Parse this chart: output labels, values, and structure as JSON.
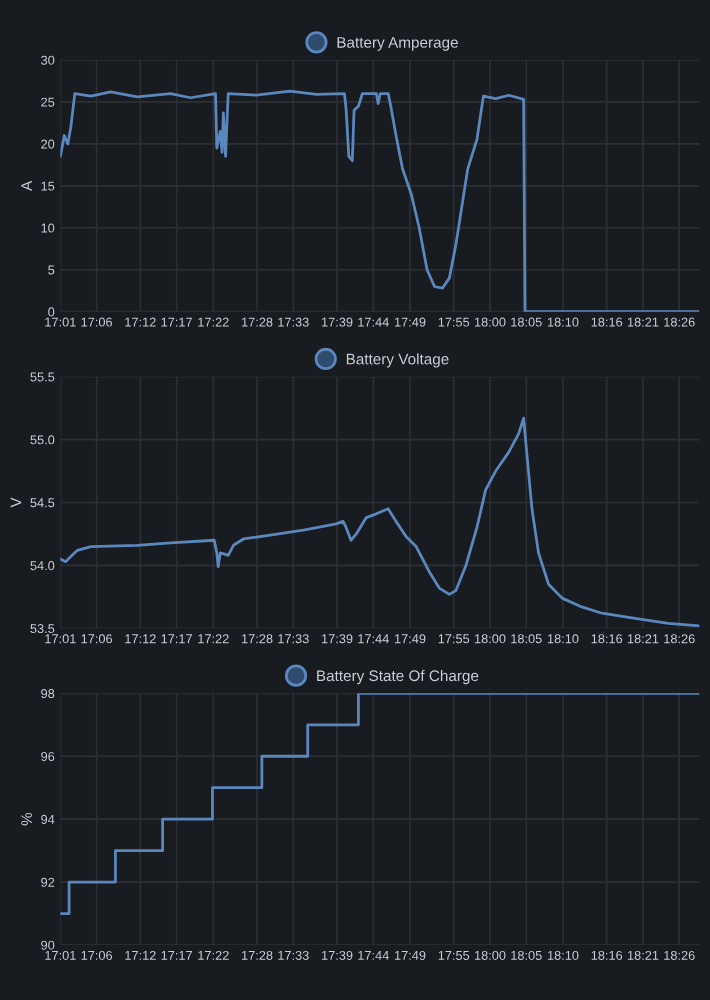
{
  "chart_data": [
    {
      "type": "line",
      "ylabel": "A",
      "legend": "top",
      "grid": true,
      "marker": "none",
      "line_style": "solid",
      "xlim": [
        17.017,
        18.479
      ],
      "ylim": [
        0,
        30
      ],
      "yticks": [
        0,
        5,
        10,
        15,
        20,
        25,
        30
      ],
      "xticks": [
        {
          "value": 17.017,
          "label": "17:01"
        },
        {
          "value": 17.1,
          "label": "17:06"
        },
        {
          "value": 17.2,
          "label": "17:12"
        },
        {
          "value": 17.283,
          "label": "17:17"
        },
        {
          "value": 17.367,
          "label": "17:22"
        },
        {
          "value": 17.467,
          "label": "17:28"
        },
        {
          "value": 17.55,
          "label": "17:33"
        },
        {
          "value": 17.65,
          "label": "17:39"
        },
        {
          "value": 17.733,
          "label": "17:44"
        },
        {
          "value": 17.817,
          "label": "17:49"
        },
        {
          "value": 17.917,
          "label": "17:55"
        },
        {
          "value": 18.0,
          "label": "18:00"
        },
        {
          "value": 18.083,
          "label": "18:05"
        },
        {
          "value": 18.167,
          "label": "18:10"
        },
        {
          "value": 18.267,
          "label": "18:16"
        },
        {
          "value": 18.35,
          "label": "18:21"
        },
        {
          "value": 18.433,
          "label": "18:26"
        }
      ],
      "series": [
        {
          "name": "Battery Amperage",
          "color": "#5a87bd",
          "x": [
            17.017,
            17.026,
            17.034,
            17.041,
            17.05,
            17.087,
            17.132,
            17.193,
            17.269,
            17.315,
            17.372,
            17.375,
            17.383,
            17.387,
            17.39,
            17.395,
            17.401,
            17.466,
            17.542,
            17.603,
            17.667,
            17.671,
            17.677,
            17.685,
            17.689,
            17.699,
            17.708,
            17.74,
            17.744,
            17.749,
            17.767,
            17.773,
            17.785,
            17.8,
            17.82,
            17.838,
            17.856,
            17.873,
            17.891,
            17.907,
            17.922,
            17.937,
            17.949,
            17.97,
            17.985,
            18.013,
            18.043,
            18.077,
            18.08,
            18.479
          ],
          "values": [
            18.5,
            21,
            20,
            22,
            26,
            25.7,
            26.2,
            25.6,
            26,
            25.5,
            26,
            19.5,
            21.5,
            19,
            23.7,
            18.5,
            26,
            25.8,
            26.3,
            25.9,
            26,
            24,
            18.5,
            18,
            24,
            24.5,
            26,
            26,
            24.8,
            26,
            26,
            24.5,
            21,
            17,
            14,
            10,
            5,
            3,
            2.8,
            4,
            8,
            13,
            17,
            20.5,
            25.7,
            25.4,
            25.8,
            25.3,
            0,
            0
          ]
        }
      ]
    },
    {
      "type": "line",
      "ylabel": "V",
      "legend": "top",
      "grid": true,
      "marker": "none",
      "line_style": "solid",
      "xlim": [
        17.017,
        18.479
      ],
      "ylim": [
        53.5,
        55.5
      ],
      "yticks": [
        {
          "value": 53.5,
          "label": "53.5"
        },
        {
          "value": 54,
          "label": "54.0"
        },
        {
          "value": 54.5,
          "label": "54.5"
        },
        {
          "value": 55,
          "label": "55.0"
        },
        {
          "value": 55.5,
          "label": "55.5"
        }
      ],
      "xticks": [
        {
          "value": 17.017,
          "label": "17:01"
        },
        {
          "value": 17.1,
          "label": "17:06"
        },
        {
          "value": 17.2,
          "label": "17:12"
        },
        {
          "value": 17.283,
          "label": "17:17"
        },
        {
          "value": 17.367,
          "label": "17:22"
        },
        {
          "value": 17.467,
          "label": "17:28"
        },
        {
          "value": 17.55,
          "label": "17:33"
        },
        {
          "value": 17.65,
          "label": "17:39"
        },
        {
          "value": 17.733,
          "label": "17:44"
        },
        {
          "value": 17.817,
          "label": "17:49"
        },
        {
          "value": 17.917,
          "label": "17:55"
        },
        {
          "value": 18.0,
          "label": "18:00"
        },
        {
          "value": 18.083,
          "label": "18:05"
        },
        {
          "value": 18.167,
          "label": "18:10"
        },
        {
          "value": 18.267,
          "label": "18:16"
        },
        {
          "value": 18.35,
          "label": "18:21"
        },
        {
          "value": 18.433,
          "label": "18:26"
        }
      ],
      "series": [
        {
          "name": "Battery Voltage",
          "color": "#5a87bd",
          "x": [
            17.017,
            17.029,
            17.041,
            17.056,
            17.087,
            17.193,
            17.269,
            17.369,
            17.375,
            17.378,
            17.383,
            17.393,
            17.401,
            17.413,
            17.436,
            17.497,
            17.573,
            17.648,
            17.664,
            17.671,
            17.682,
            17.694,
            17.717,
            17.74,
            17.767,
            17.785,
            17.808,
            17.831,
            17.861,
            17.884,
            17.907,
            17.922,
            17.945,
            17.97,
            17.99,
            18.013,
            18.043,
            18.066,
            18.077,
            18.084,
            18.096,
            18.111,
            18.134,
            18.165,
            18.21,
            18.256,
            18.332,
            18.408,
            18.479
          ],
          "values": [
            54.05,
            54.03,
            54.07,
            54.12,
            54.15,
            54.16,
            54.18,
            54.2,
            54.1,
            53.99,
            54.1,
            54.09,
            54.08,
            54.16,
            54.21,
            54.24,
            54.28,
            54.33,
            54.35,
            54.3,
            54.2,
            54.25,
            54.38,
            54.41,
            54.45,
            54.35,
            54.23,
            54.15,
            53.95,
            53.82,
            53.77,
            53.8,
            54.0,
            54.3,
            54.6,
            54.75,
            54.9,
            55.05,
            55.17,
            54.9,
            54.45,
            54.1,
            53.85,
            53.74,
            53.67,
            53.62,
            53.58,
            53.54,
            53.52
          ]
        }
      ]
    },
    {
      "type": "step",
      "ylabel": "%",
      "legend": "top",
      "grid": true,
      "marker": "none",
      "line_style": "solid",
      "xlim": [
        17.017,
        18.479
      ],
      "ylim": [
        90,
        98
      ],
      "yticks": [
        90,
        92,
        94,
        96,
        98
      ],
      "xticks": [
        {
          "value": 17.017,
          "label": "17:01"
        },
        {
          "value": 17.1,
          "label": "17:06"
        },
        {
          "value": 17.2,
          "label": "17:12"
        },
        {
          "value": 17.283,
          "label": "17:17"
        },
        {
          "value": 17.367,
          "label": "17:22"
        },
        {
          "value": 17.467,
          "label": "17:28"
        },
        {
          "value": 17.55,
          "label": "17:33"
        },
        {
          "value": 17.65,
          "label": "17:39"
        },
        {
          "value": 17.733,
          "label": "17:44"
        },
        {
          "value": 17.817,
          "label": "17:49"
        },
        {
          "value": 17.917,
          "label": "17:55"
        },
        {
          "value": 18.0,
          "label": "18:00"
        },
        {
          "value": 18.083,
          "label": "18:05"
        },
        {
          "value": 18.167,
          "label": "18:10"
        },
        {
          "value": 18.267,
          "label": "18:16"
        },
        {
          "value": 18.35,
          "label": "18:21"
        },
        {
          "value": 18.433,
          "label": "18:26"
        }
      ],
      "series": [
        {
          "name": "Battery State Of Charge",
          "color": "#5a87bd",
          "x": [
            17.017,
            17.037,
            17.143,
            17.251,
            17.365,
            17.478,
            17.583,
            17.699,
            18.479
          ],
          "values": [
            91,
            92,
            93,
            94,
            95,
            96,
            97,
            98,
            98
          ]
        }
      ]
    }
  ]
}
